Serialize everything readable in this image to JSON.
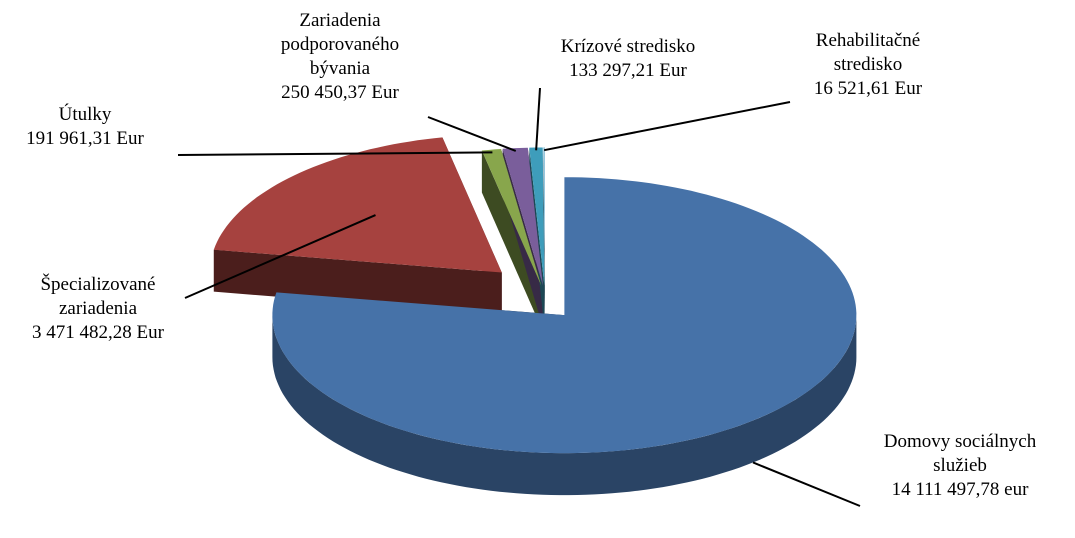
{
  "chart_data": {
    "type": "pie3d",
    "categories": [
      "Domovy sociálnych služieb",
      "Špecializované zariadenia",
      "Útulky",
      "Zariadenia podporovaného bývania",
      "Krízové stredisko",
      "Rehabilitačné stredisko"
    ],
    "values": [
      14111497.78,
      3471482.28,
      191961.31,
      250450.37,
      133297.21,
      16521.61
    ],
    "value_labels": [
      "14 111 497,78 eur",
      "3 471 482,28 Eur",
      "191 961,31 Eur",
      "250 450,37 Eur",
      "133 297,21 Eur",
      "16 521,61 Eur"
    ],
    "colors": [
      "#4672a8",
      "#a6423f",
      "#88a64c",
      "#7a5e9b",
      "#3e9dbb",
      "#8cc0d8"
    ]
  }
}
